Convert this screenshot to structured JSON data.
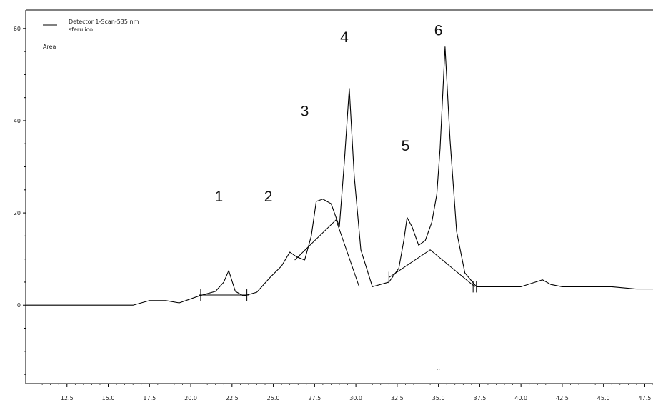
{
  "chart_data": {
    "type": "line",
    "legend": {
      "series_line1": "Detector 1-Scan-535 nm",
      "series_line2": "sferulico",
      "area_label": "Area"
    },
    "xlim": [
      10.0,
      48.0
    ],
    "ylim": [
      -17,
      64
    ],
    "x_ticks": [
      "12.5",
      "15.0",
      "17.5",
      "20.0",
      "22.5",
      "25.0",
      "27.5",
      "30.0",
      "32.5",
      "35.0",
      "37.5",
      "40.0",
      "42.5",
      "45.0",
      "47.5"
    ],
    "x_tick_values": [
      12.5,
      15.0,
      17.5,
      20.0,
      22.5,
      25.0,
      27.5,
      30.0,
      32.5,
      35.0,
      37.5,
      40.0,
      42.5,
      45.0,
      47.5
    ],
    "y_ticks": [
      "60",
      "40",
      "20",
      "0"
    ],
    "y_tick_values": [
      60,
      40,
      20,
      0
    ],
    "peak_labels": [
      {
        "text": "1",
        "x": 21.7,
        "y": 22.5
      },
      {
        "text": "2",
        "x": 24.7,
        "y": 22.5
      },
      {
        "text": "3",
        "x": 26.9,
        "y": 41.0
      },
      {
        "text": "4",
        "x": 29.3,
        "y": 57.0
      },
      {
        "text": "5",
        "x": 33.0,
        "y": 33.5
      },
      {
        "text": "6",
        "x": 35.0,
        "y": 58.5
      }
    ],
    "series": [
      {
        "x": [
          10.0,
          16.5,
          17.5,
          18.5,
          19.3,
          20.5,
          21.5,
          22.0,
          22.3,
          22.7,
          23.2,
          24.0,
          24.8,
          25.5,
          26.0,
          26.4,
          26.9,
          27.3,
          27.6,
          28.0,
          28.5,
          29.0,
          29.3,
          29.6,
          29.9,
          30.3,
          31.0,
          32.0,
          32.6,
          32.9,
          33.1,
          33.4,
          33.8,
          34.2,
          34.6,
          34.9,
          35.1,
          35.4,
          35.7,
          36.1,
          36.6,
          37.3,
          40.0,
          41.3,
          41.8,
          42.5,
          43.5,
          45.5,
          47.0,
          48.0
        ],
        "y": [
          0,
          0,
          1,
          1,
          0.5,
          2,
          3,
          5,
          7.5,
          3,
          2,
          2.8,
          6,
          8.5,
          11.5,
          10.5,
          9.8,
          15,
          22.5,
          23,
          22,
          17,
          31,
          47,
          28,
          12,
          4,
          5,
          8,
          14,
          19,
          17,
          13,
          14,
          18,
          24,
          34,
          56,
          36,
          16,
          7,
          4,
          4,
          5.5,
          4.5,
          4,
          4,
          4,
          3.5,
          3.5
        ]
      }
    ],
    "baselines": [
      {
        "x": [
          20.5,
          23.5
        ],
        "y": [
          2.2,
          2.2
        ]
      },
      {
        "x": [
          26.3,
          28.8,
          30.2
        ],
        "y": [
          9.8,
          18.5,
          4.0
        ]
      },
      {
        "x": [
          32.0,
          34.5,
          37.2
        ],
        "y": [
          6.0,
          12.0,
          4.0
        ]
      }
    ],
    "integration_marks": [
      {
        "x": 20.6,
        "y": 2.2
      },
      {
        "x": 23.4,
        "y": 2.2
      },
      {
        "x": 32.0,
        "y": 6.0
      },
      {
        "x": 37.1,
        "y": 4.0
      },
      {
        "x": 37.3,
        "y": 4.0
      }
    ],
    "bottom_mark": {
      "text": "..",
      "x": 35.0,
      "y": -14.0
    },
    "grid": false
  }
}
